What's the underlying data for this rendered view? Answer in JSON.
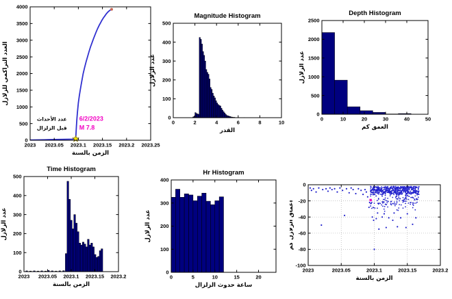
{
  "figure": {
    "background": "#ffffff"
  },
  "colors": {
    "bar_fill": "#00007f",
    "bar_edge": "#000000",
    "line": "#3030d0",
    "scatter_dot": "#2222cc",
    "accent_magenta": "#f300c3",
    "star_fill": "#ffee00",
    "star_edge": "#887700",
    "end_dot": "#c96a57",
    "grid": "#b0b0b0",
    "axis": "#000000"
  },
  "chart_data": [
    {
      "id": "cumulative_count",
      "type": "line",
      "title": "",
      "xlabel": "الزمن بالسنة",
      "ylabel": "العدد التراكمي للزلازل",
      "xlim": [
        2023,
        2023.25
      ],
      "ylim": [
        0,
        4000
      ],
      "xticks": [
        2023,
        2023.05,
        2023.1,
        2023.15,
        2023.2,
        2023.25
      ],
      "xtick_labels": [
        "2023",
        "2023.05",
        "2023.1",
        "2023.15",
        "2023.2",
        "2023.25"
      ],
      "yticks": [
        0,
        500,
        1000,
        1500,
        2000,
        2500,
        3000,
        3500,
        4000
      ],
      "points": [
        [
          2023.0,
          8
        ],
        [
          2023.01,
          10
        ],
        [
          2023.02,
          13
        ],
        [
          2023.03,
          16
        ],
        [
          2023.04,
          19
        ],
        [
          2023.05,
          22
        ],
        [
          2023.06,
          25
        ],
        [
          2023.07,
          28
        ],
        [
          2023.08,
          31
        ],
        [
          2023.088,
          34
        ],
        [
          2023.093,
          38
        ],
        [
          2023.0945,
          60
        ],
        [
          2023.095,
          160
        ],
        [
          2023.096,
          420
        ],
        [
          2023.097,
          640
        ],
        [
          2023.098,
          820
        ],
        [
          2023.1,
          1120
        ],
        [
          2023.102,
          1330
        ],
        [
          2023.104,
          1510
        ],
        [
          2023.106,
          1680
        ],
        [
          2023.108,
          1840
        ],
        [
          2023.11,
          2000
        ],
        [
          2023.113,
          2180
        ],
        [
          2023.116,
          2350
        ],
        [
          2023.119,
          2500
        ],
        [
          2023.122,
          2650
        ],
        [
          2023.125,
          2790
        ],
        [
          2023.128,
          2910
        ],
        [
          2023.131,
          3030
        ],
        [
          2023.134,
          3140
        ],
        [
          2023.137,
          3250
        ],
        [
          2023.14,
          3350
        ],
        [
          2023.143,
          3440
        ],
        [
          2023.146,
          3520
        ],
        [
          2023.149,
          3600
        ],
        [
          2023.152,
          3670
        ],
        [
          2023.155,
          3730
        ],
        [
          2023.158,
          3790
        ],
        [
          2023.161,
          3840
        ],
        [
          2023.164,
          3880
        ],
        [
          2023.167,
          3910
        ],
        [
          2023.169,
          3925
        ]
      ],
      "markers": [
        {
          "shape": "star",
          "x": 2023.0945,
          "y": 40,
          "color": "#ffee00",
          "edge": "#887700"
        },
        {
          "shape": "dot",
          "x": 2023.169,
          "y": 3925,
          "color": "#c96a57"
        }
      ],
      "annotations": [
        {
          "text": "عدد الأحداث",
          "x": 2023.045,
          "y": 580,
          "color": "#000000",
          "size": 7.5,
          "anchor": "middle",
          "arabic": true
        },
        {
          "text": "قبل الزلزال",
          "x": 2023.045,
          "y": 320,
          "color": "#000000",
          "size": 7.5,
          "anchor": "middle",
          "arabic": true
        },
        {
          "text": "6/2/2023",
          "x": 2023.102,
          "y": 580,
          "color": "#f300c3",
          "size": 9,
          "anchor": "start"
        },
        {
          "text": "M 7.8",
          "x": 2023.102,
          "y": 320,
          "color": "#f300c3",
          "size": 9,
          "anchor": "start"
        }
      ]
    },
    {
      "id": "magnitude_histogram",
      "type": "bar",
      "title": "Magnitude Histogram",
      "xlabel": "القدر",
      "ylabel": "عدد الزلازل",
      "xlim": [
        0,
        10
      ],
      "ylim": [
        0,
        500
      ],
      "xticks": [
        0,
        2,
        4,
        6,
        8,
        10
      ],
      "xtick_labels": [
        "0",
        "2",
        "4",
        "6",
        "8",
        "10"
      ],
      "yticks": [
        0,
        100,
        200,
        300,
        400,
        500
      ],
      "bin_width": 0.1,
      "bins": [
        [
          1.8,
          4
        ],
        [
          1.9,
          8
        ],
        [
          2.0,
          27
        ],
        [
          2.1,
          22
        ],
        [
          2.2,
          20
        ],
        [
          2.3,
          18
        ],
        [
          2.4,
          425
        ],
        [
          2.5,
          415
        ],
        [
          2.6,
          390
        ],
        [
          2.7,
          350
        ],
        [
          2.8,
          330
        ],
        [
          2.9,
          300
        ],
        [
          3.0,
          255
        ],
        [
          3.1,
          240
        ],
        [
          3.2,
          230
        ],
        [
          3.3,
          205
        ],
        [
          3.4,
          160
        ],
        [
          3.5,
          150
        ],
        [
          3.6,
          130
        ],
        [
          3.7,
          115
        ],
        [
          3.8,
          105
        ],
        [
          3.9,
          90
        ],
        [
          4.0,
          78
        ],
        [
          4.1,
          70
        ],
        [
          4.2,
          65
        ],
        [
          4.3,
          62
        ],
        [
          4.4,
          50
        ],
        [
          4.5,
          40
        ],
        [
          4.6,
          32
        ],
        [
          4.7,
          25
        ],
        [
          4.8,
          18
        ],
        [
          4.9,
          12
        ],
        [
          5.0,
          10
        ],
        [
          5.1,
          8
        ],
        [
          5.2,
          6
        ],
        [
          5.3,
          4
        ],
        [
          5.4,
          3
        ],
        [
          5.5,
          2
        ],
        [
          5.6,
          2
        ],
        [
          5.8,
          1
        ],
        [
          6.0,
          1
        ],
        [
          6.5,
          1
        ],
        [
          7.8,
          1
        ]
      ]
    },
    {
      "id": "depth_histogram",
      "type": "bar",
      "title": "Depth Histogram",
      "xlabel": "العمق كم",
      "ylabel": "عدد الزلازل",
      "xlim": [
        0,
        50
      ],
      "ylim": [
        0,
        2500
      ],
      "xticks": [
        0,
        10,
        20,
        30,
        40,
        50
      ],
      "xtick_labels": [
        "0",
        "10",
        "20",
        "30",
        "40",
        "50"
      ],
      "yticks": [
        0,
        500,
        1000,
        1500,
        2000,
        2500
      ],
      "bin_width": 6,
      "bins": [
        [
          0,
          2180
        ],
        [
          6,
          910
        ],
        [
          12,
          200
        ],
        [
          18,
          95
        ],
        [
          24,
          50
        ],
        [
          30,
          8
        ],
        [
          36,
          18
        ],
        [
          42,
          4
        ]
      ]
    },
    {
      "id": "time_histogram",
      "type": "bar",
      "title": "Time Histogram",
      "xlabel": "الزمن بالسنة",
      "ylabel": "عدد الزلازل",
      "xlim": [
        2023,
        2023.2
      ],
      "ylim": [
        0,
        500
      ],
      "xticks": [
        2023,
        2023.05,
        2023.1,
        2023.15,
        2023.2
      ],
      "xtick_labels": [
        "2023",
        "2023.05",
        "2023.1",
        "2023.15",
        "2023.2"
      ],
      "yticks": [
        0,
        100,
        200,
        300,
        400,
        500
      ],
      "bin_width": 0.0036,
      "bins": [
        [
          2023.004,
          4
        ],
        [
          2023.012,
          3
        ],
        [
          2023.02,
          4
        ],
        [
          2023.028,
          3
        ],
        [
          2023.036,
          4
        ],
        [
          2023.044,
          3
        ],
        [
          2023.05,
          6
        ],
        [
          2023.058,
          4
        ],
        [
          2023.066,
          3
        ],
        [
          2023.074,
          4
        ],
        [
          2023.082,
          5
        ],
        [
          2023.0875,
          95
        ],
        [
          2023.0911,
          475
        ],
        [
          2023.0947,
          380
        ],
        [
          2023.0983,
          270
        ],
        [
          2023.1019,
          225
        ],
        [
          2023.1055,
          300
        ],
        [
          2023.1091,
          255
        ],
        [
          2023.1127,
          210
        ],
        [
          2023.1163,
          150
        ],
        [
          2023.1199,
          140
        ],
        [
          2023.1235,
          155
        ],
        [
          2023.1271,
          145
        ],
        [
          2023.1307,
          130
        ],
        [
          2023.1343,
          170
        ],
        [
          2023.1379,
          140
        ],
        [
          2023.1415,
          150
        ],
        [
          2023.1451,
          130
        ],
        [
          2023.1487,
          90
        ],
        [
          2023.1523,
          75
        ],
        [
          2023.1559,
          80
        ],
        [
          2023.1595,
          110
        ],
        [
          2023.1631,
          120
        ]
      ]
    },
    {
      "id": "hr_histogram",
      "type": "bar",
      "title": "Hr Histogram",
      "xlabel": "ساعة حدوث الزلزال",
      "ylabel": "عدد الزلازل",
      "xlim": [
        0,
        24
      ],
      "ylim": [
        0,
        400
      ],
      "xticks": [
        0,
        5,
        10,
        15,
        20
      ],
      "xtick_labels": [
        "0",
        "5",
        "10",
        "15",
        "20"
      ],
      "yticks": [
        0,
        100,
        200,
        300,
        400
      ],
      "bin_width": 1,
      "bins": [
        [
          0,
          325
        ],
        [
          1,
          360
        ],
        [
          2,
          325
        ],
        [
          3,
          340
        ],
        [
          4,
          335
        ],
        [
          5,
          310
        ],
        [
          6,
          330
        ],
        [
          7,
          343
        ],
        [
          8,
          308
        ],
        [
          9,
          293
        ],
        [
          10,
          310
        ],
        [
          11,
          327
        ]
      ]
    },
    {
      "id": "depth_time_scatter",
      "type": "scatter",
      "title": "",
      "xlabel": "الزمن بالسنة",
      "ylabel": "أعماق الزلازل كم",
      "xlim": [
        2023,
        2023.2
      ],
      "ylim": [
        -100,
        0
      ],
      "xticks": [
        2023,
        2023.05,
        2023.1,
        2023.15,
        2023.2
      ],
      "xtick_labels": [
        "2023",
        "2023.05",
        "2023.1",
        "2023.15",
        "2023.2"
      ],
      "yticks": [
        0,
        -20,
        -40,
        -60,
        -80,
        -100
      ],
      "grid": true,
      "points": [
        [
          2023.003,
          -4
        ],
        [
          2023.005,
          -7
        ],
        [
          2023.008,
          -5
        ],
        [
          2023.012,
          -9
        ],
        [
          2023.016,
          -4
        ],
        [
          2023.02,
          -50
        ],
        [
          2023.022,
          -6
        ],
        [
          2023.027,
          -5
        ],
        [
          2023.03,
          -8
        ],
        [
          2023.033,
          -4
        ],
        [
          2023.036,
          -6
        ],
        [
          2023.04,
          -5
        ],
        [
          2023.044,
          -9
        ],
        [
          2023.048,
          -4
        ],
        [
          2023.052,
          -7
        ],
        [
          2023.055,
          -38
        ],
        [
          2023.058,
          -5
        ],
        [
          2023.062,
          -10
        ],
        [
          2023.065,
          -4
        ],
        [
          2023.068,
          -6
        ],
        [
          2023.072,
          -11
        ],
        [
          2023.076,
          -5
        ],
        [
          2023.08,
          -7
        ],
        [
          2023.083,
          -12
        ],
        [
          2023.086,
          -6
        ],
        [
          2023.088,
          -9
        ],
        [
          2023.09,
          -15
        ],
        [
          2023.092,
          -28
        ],
        [
          2023.093,
          -22
        ]
      ],
      "cluster": {
        "seed": 7,
        "n": 650,
        "cols": 80,
        "x_min": 2023.094,
        "x_max": 2023.168
      },
      "deep_points": [
        [
          2023.097,
          -40
        ],
        [
          2023.099,
          -44
        ],
        [
          2023.103,
          -42
        ],
        [
          2023.107,
          -55
        ],
        [
          2023.112,
          -40
        ],
        [
          2023.118,
          -53
        ],
        [
          2023.122,
          -41
        ],
        [
          2023.128,
          -44
        ],
        [
          2023.135,
          -52
        ],
        [
          2023.14,
          -41
        ],
        [
          2023.148,
          -53
        ],
        [
          2023.158,
          -49
        ],
        [
          2023.163,
          -41
        ],
        [
          2023.1,
          -80
        ],
        [
          2023.105,
          -35
        ],
        [
          2023.115,
          -36
        ],
        [
          2023.13,
          -35
        ],
        [
          2023.15,
          -36
        ]
      ],
      "highlight": {
        "x": 2023.0945,
        "y": -19,
        "color": "#f300c3"
      }
    }
  ]
}
